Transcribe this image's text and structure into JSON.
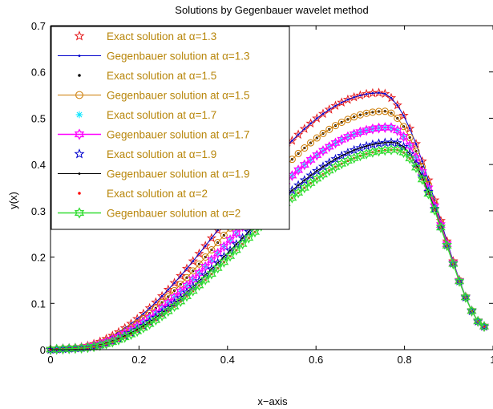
{
  "chart_data": {
    "type": "line",
    "title": "Solutions by Gegenbauer wavelet method",
    "xlabel": "x−axis",
    "ylabel": "y(x)",
    "xlim": [
      0,
      1
    ],
    "ylim": [
      0,
      0.7
    ],
    "xticks": [
      0,
      0.2,
      0.4,
      0.6,
      0.8,
      1
    ],
    "xtick_labels": [
      "0",
      "0.2",
      "0.4",
      "0.6",
      "0.8",
      "1"
    ],
    "yticks": [
      0,
      0.1,
      0.2,
      0.3,
      0.4,
      0.5,
      0.6,
      0.7
    ],
    "ytick_labels": [
      "0",
      "0.1",
      "0.2",
      "0.3",
      "0.4",
      "0.5",
      "0.6",
      "0.7"
    ],
    "grid": false,
    "legend_position": "top-left",
    "series": [
      {
        "name": "Exact solution at α=1.3",
        "peak_x": 0.745,
        "peak_y": 0.555,
        "start_x": 0.04,
        "end_x": 0.98,
        "end_y": 0.05,
        "style": "star-marker",
        "color": "#e41a1c"
      },
      {
        "name": "Gegenbauer solution at α=1.3",
        "peak_x": 0.745,
        "peak_y": 0.555,
        "start_x": 0.04,
        "end_x": 0.98,
        "end_y": 0.05,
        "style": "line-dot",
        "color": "#0000cc"
      },
      {
        "name": "Exact solution at α=1.5",
        "peak_x": 0.755,
        "peak_y": 0.515,
        "start_x": 0.045,
        "end_x": 0.98,
        "end_y": 0.05,
        "style": "dot-marker",
        "color": "#000000"
      },
      {
        "name": "Gegenbauer solution at α=1.5",
        "peak_x": 0.755,
        "peak_y": 0.515,
        "start_x": 0.045,
        "end_x": 0.98,
        "end_y": 0.05,
        "style": "line-circle",
        "color": "#cc7a00"
      },
      {
        "name": "Exact solution at α=1.7",
        "peak_x": 0.765,
        "peak_y": 0.48,
        "start_x": 0.05,
        "end_x": 0.98,
        "end_y": 0.05,
        "style": "asterisk-marker",
        "color": "#00e5ff"
      },
      {
        "name": "Gegenbauer solution at α=1.7",
        "peak_x": 0.765,
        "peak_y": 0.48,
        "start_x": 0.05,
        "end_x": 0.98,
        "end_y": 0.05,
        "style": "line-hexagram",
        "color": "#ff00ff"
      },
      {
        "name": "Exact solution at α=1.9",
        "peak_x": 0.775,
        "peak_y": 0.448,
        "start_x": 0.055,
        "end_x": 0.98,
        "end_y": 0.05,
        "style": "star-marker",
        "color": "#0000cc"
      },
      {
        "name": "Gegenbauer solution at α=1.9",
        "peak_x": 0.775,
        "peak_y": 0.448,
        "start_x": 0.055,
        "end_x": 0.98,
        "end_y": 0.05,
        "style": "line-dot",
        "color": "#000000"
      },
      {
        "name": "Exact solution at α=2",
        "peak_x": 0.78,
        "peak_y": 0.432,
        "start_x": 0.06,
        "end_x": 0.98,
        "end_y": 0.05,
        "style": "dot-marker",
        "color": "#ff0000"
      },
      {
        "name": "Gegenbauer solution at α=2",
        "peak_x": 0.78,
        "peak_y": 0.432,
        "start_x": 0.06,
        "end_x": 0.98,
        "end_y": 0.05,
        "style": "line-hexagram",
        "color": "#33dd33"
      }
    ]
  }
}
